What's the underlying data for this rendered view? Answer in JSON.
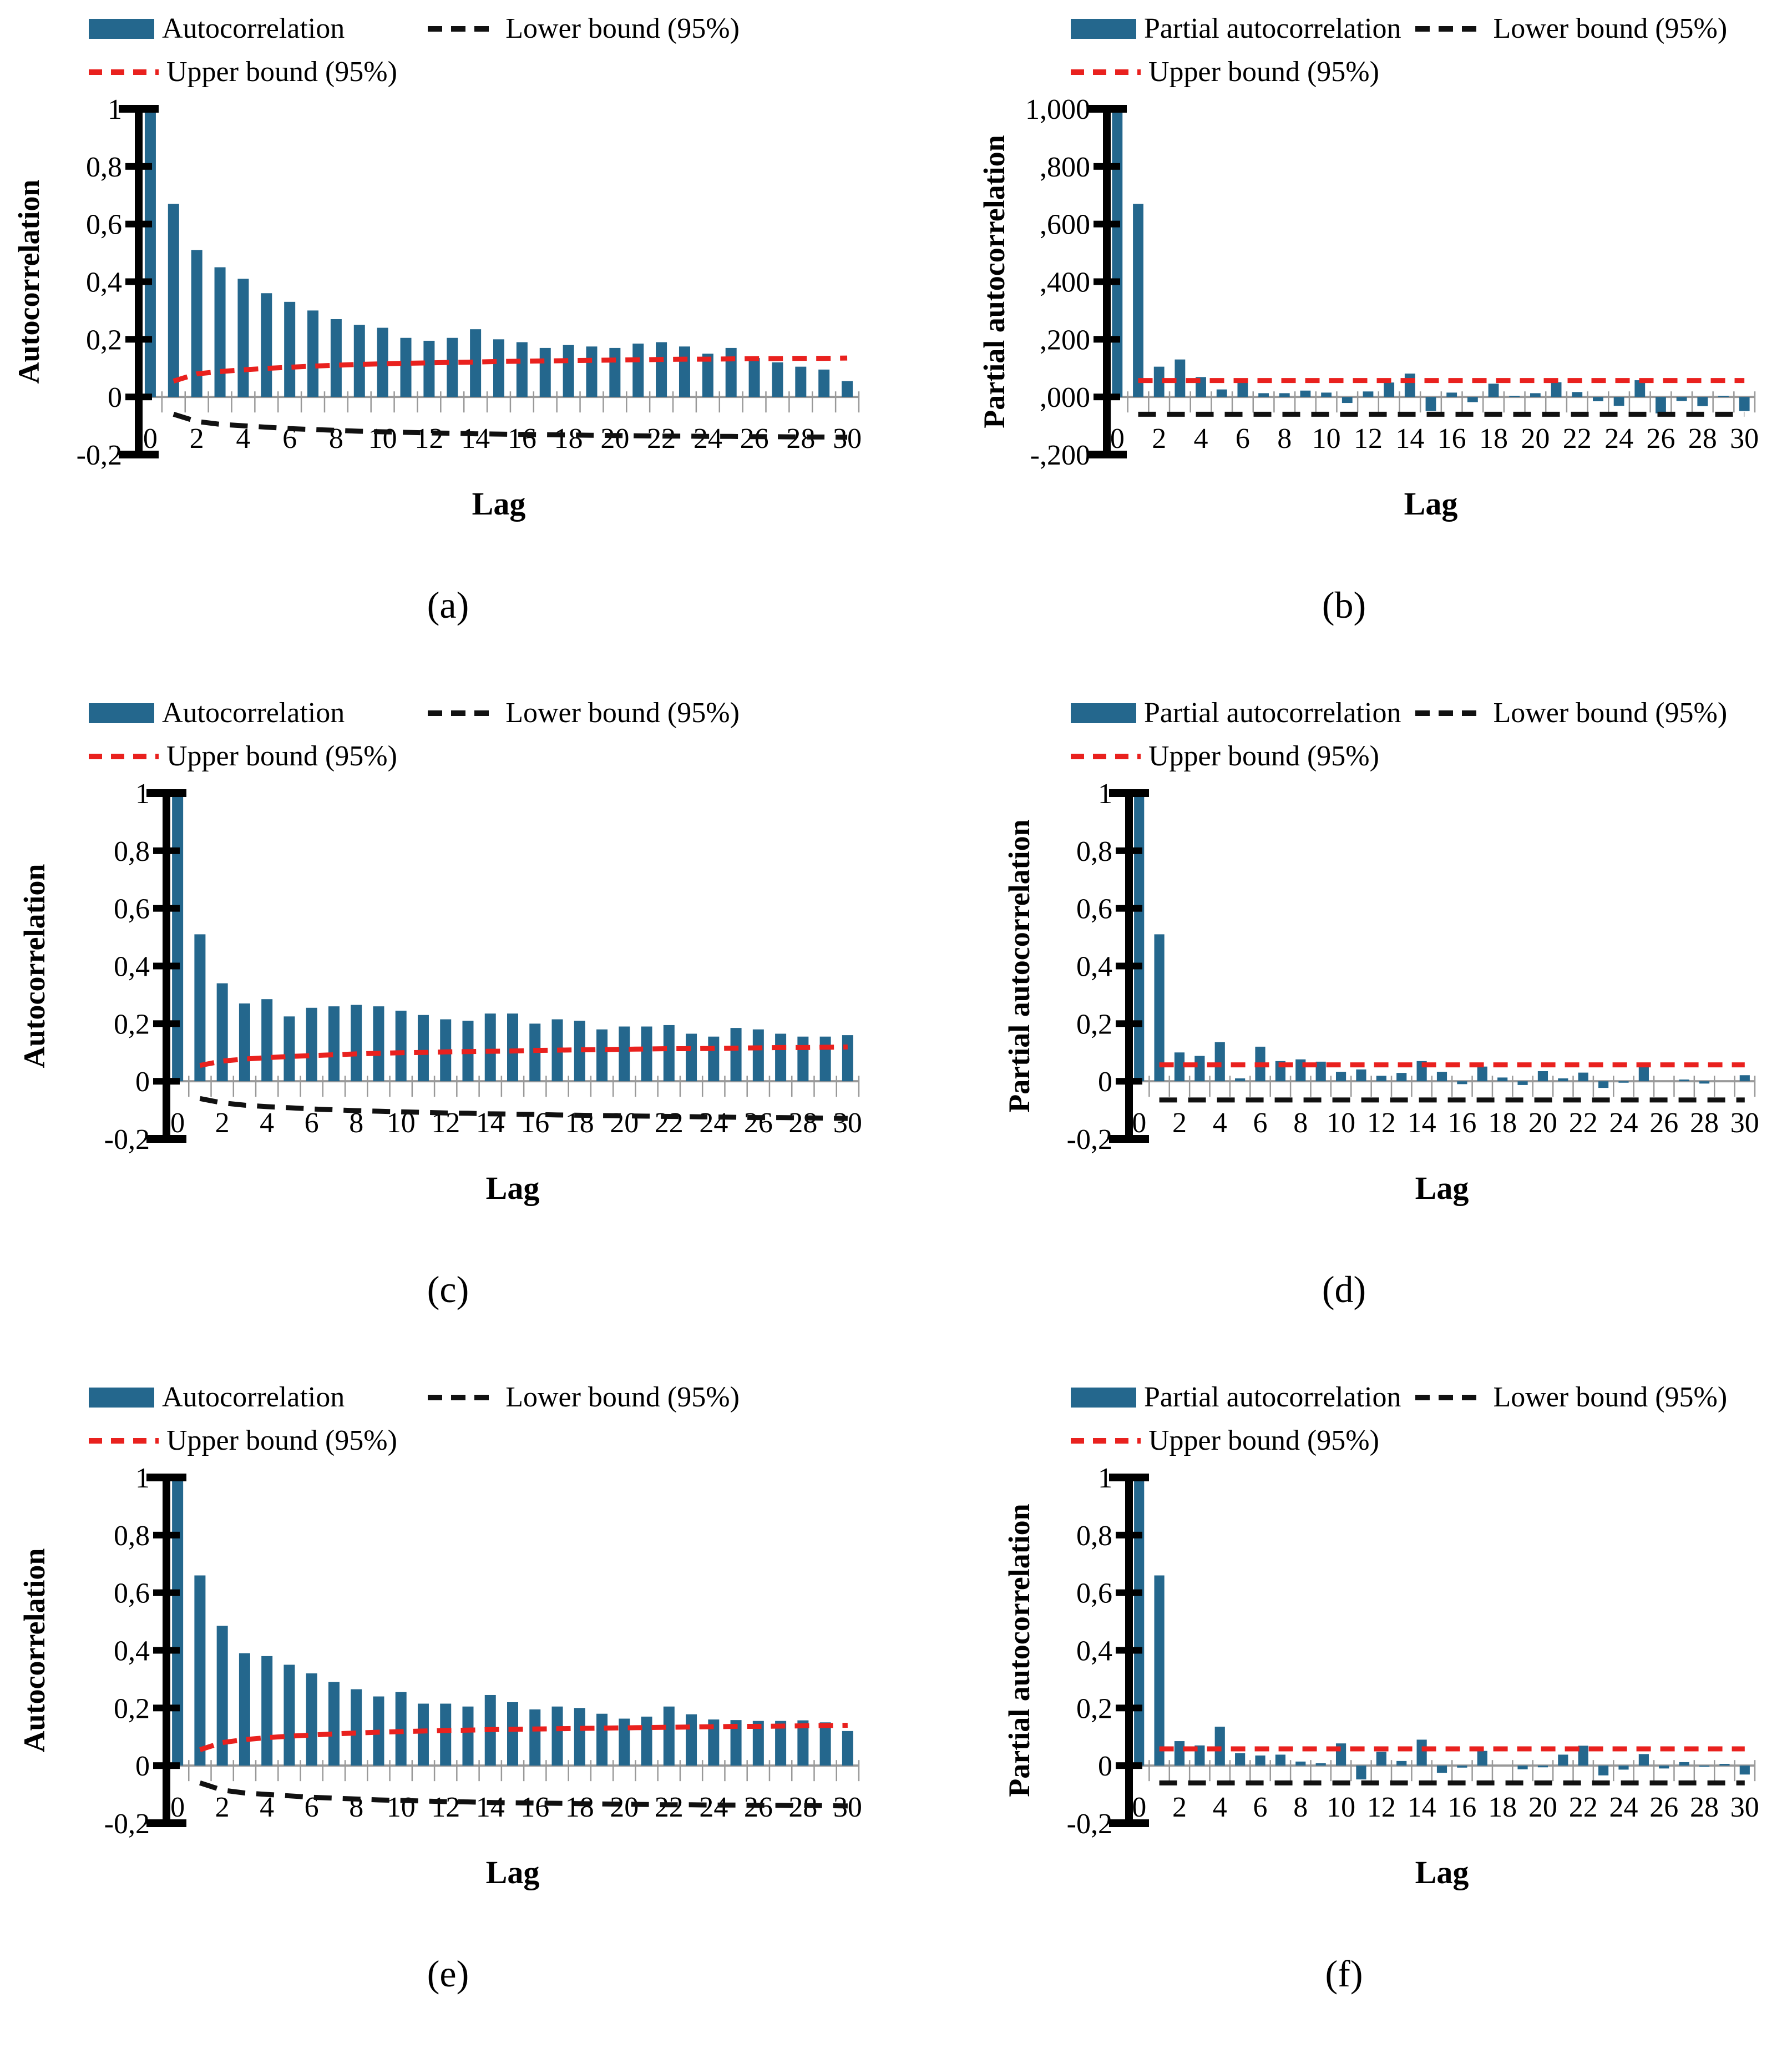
{
  "page": {
    "background": "#ffffff"
  },
  "colors": {
    "bar": "#24678d",
    "upper_bound": "#e9211e",
    "lower_bound": "#111111",
    "axis_gray": "#999999",
    "axis_black": "#000000"
  },
  "chart_data": [
    {
      "id": "a",
      "type": "bar",
      "caption": "(a)",
      "legend": {
        "series": "Autocorrelation",
        "lower": "Lower bound (95%)",
        "upper": "Upper bound (95%)"
      },
      "ylabel": "Autocorrelation",
      "xlabel": "Lag",
      "ylim": [
        -0.2,
        1
      ],
      "ytick_labels": [
        "1",
        "0,8",
        "0,6",
        "0,4",
        "0,2",
        "0",
        "-0,2"
      ],
      "ytick_values": [
        1,
        0.8,
        0.6,
        0.4,
        0.2,
        0,
        -0.2
      ],
      "xtick_labels": [
        "0",
        "2",
        "4",
        "6",
        "8",
        "10",
        "12",
        "14",
        "16",
        "18",
        "20",
        "22",
        "24",
        "26",
        "28",
        "30"
      ],
      "xtick_values": [
        0,
        2,
        4,
        6,
        8,
        10,
        12,
        14,
        16,
        18,
        20,
        22,
        24,
        26,
        28,
        30
      ],
      "values": [
        1,
        0.67,
        0.51,
        0.45,
        0.41,
        0.36,
        0.33,
        0.3,
        0.27,
        0.25,
        0.24,
        0.205,
        0.195,
        0.205,
        0.235,
        0.2,
        0.19,
        0.17,
        0.18,
        0.175,
        0.17,
        0.185,
        0.19,
        0.175,
        0.15,
        0.17,
        0.135,
        0.12,
        0.105,
        0.095,
        0.055
      ],
      "upper_bound": [
        null,
        0.055,
        0.08,
        0.088,
        0.094,
        0.099,
        0.103,
        0.107,
        0.11,
        0.113,
        0.115,
        0.117,
        0.118,
        0.12,
        0.121,
        0.123,
        0.124,
        0.125,
        0.126,
        0.127,
        0.128,
        0.129,
        0.13,
        0.131,
        0.131,
        0.132,
        0.133,
        0.133,
        0.134,
        0.134,
        0.135
      ],
      "lower_bound": [
        null,
        -0.06,
        -0.085,
        -0.095,
        -0.1,
        -0.105,
        -0.11,
        -0.113,
        -0.116,
        -0.119,
        -0.121,
        -0.123,
        -0.125,
        -0.126,
        -0.128,
        -0.129,
        -0.13,
        -0.131,
        -0.132,
        -0.133,
        -0.134,
        -0.135,
        -0.136,
        -0.136,
        -0.137,
        -0.137,
        -0.138,
        -0.138,
        -0.139,
        -0.139,
        -0.14
      ]
    },
    {
      "id": "b",
      "type": "bar",
      "caption": "(b)",
      "legend": {
        "series": "Partial autocorrelation",
        "lower": "Lower bound (95%)",
        "upper": "Upper bound (95%)"
      },
      "ylabel": "Partial autocorrelation",
      "xlabel": "Lag",
      "ylim": [
        -0.2,
        1
      ],
      "ytick_labels": [
        "1,000",
        ",800",
        ",600",
        ",400",
        ",200",
        ",000",
        "-,200"
      ],
      "ytick_values": [
        1,
        0.8,
        0.6,
        0.4,
        0.2,
        0,
        -0.2
      ],
      "xtick_labels": [
        "0",
        "2",
        "4",
        "6",
        "8",
        "10",
        "12",
        "14",
        "16",
        "18",
        "20",
        "22",
        "24",
        "26",
        "28",
        "30"
      ],
      "xtick_values": [
        0,
        2,
        4,
        6,
        8,
        10,
        12,
        14,
        16,
        18,
        20,
        22,
        24,
        26,
        28,
        30
      ],
      "values": [
        1,
        0.67,
        0.105,
        0.13,
        0.069,
        0.026,
        0.054,
        0.013,
        0.013,
        0.022,
        0.015,
        -0.021,
        0.019,
        0.05,
        0.081,
        -0.049,
        0.015,
        -0.018,
        0.046,
        0.004,
        0.013,
        0.051,
        0.017,
        -0.015,
        -0.031,
        0.058,
        -0.057,
        -0.014,
        -0.032,
        0.004,
        -0.049
      ],
      "upper_bound": [
        null,
        0.057,
        0.057,
        0.057,
        0.057,
        0.057,
        0.057,
        0.057,
        0.057,
        0.057,
        0.057,
        0.057,
        0.057,
        0.057,
        0.057,
        0.057,
        0.057,
        0.057,
        0.057,
        0.057,
        0.057,
        0.057,
        0.057,
        0.057,
        0.057,
        0.057,
        0.057,
        0.057,
        0.057,
        0.057,
        0.057
      ],
      "lower_bound": [
        null,
        -0.06,
        -0.06,
        -0.06,
        -0.06,
        -0.06,
        -0.06,
        -0.06,
        -0.06,
        -0.06,
        -0.06,
        -0.06,
        -0.06,
        -0.06,
        -0.06,
        -0.06,
        -0.06,
        -0.06,
        -0.06,
        -0.06,
        -0.06,
        -0.06,
        -0.06,
        -0.06,
        -0.06,
        -0.06,
        -0.06,
        -0.06,
        -0.06,
        -0.06,
        -0.06
      ]
    },
    {
      "id": "c",
      "type": "bar",
      "caption": "(c)",
      "legend": {
        "series": "Autocorrelation",
        "lower": "Lower bound (95%)",
        "upper": "Upper bound (95%)"
      },
      "ylabel": "Autocorrelation",
      "xlabel": "Lag",
      "ylim": [
        -0.2,
        1
      ],
      "ytick_labels": [
        "1",
        "0,8",
        "0,6",
        "0,4",
        "0,2",
        "0",
        "-0,2"
      ],
      "ytick_values": [
        1,
        0.8,
        0.6,
        0.4,
        0.2,
        0,
        -0.2
      ],
      "xtick_labels": [
        "0",
        "2",
        "4",
        "6",
        "8",
        "10",
        "12",
        "14",
        "16",
        "18",
        "20",
        "22",
        "24",
        "26",
        "28",
        "30"
      ],
      "xtick_values": [
        0,
        2,
        4,
        6,
        8,
        10,
        12,
        14,
        16,
        18,
        20,
        22,
        24,
        26,
        28,
        30
      ],
      "values": [
        1,
        0.51,
        0.34,
        0.27,
        0.285,
        0.225,
        0.255,
        0.26,
        0.265,
        0.26,
        0.245,
        0.23,
        0.215,
        0.21,
        0.235,
        0.235,
        0.2,
        0.215,
        0.21,
        0.18,
        0.19,
        0.19,
        0.195,
        0.165,
        0.155,
        0.185,
        0.18,
        0.165,
        0.155,
        0.155,
        0.16
      ],
      "upper_bound": [
        null,
        0.055,
        0.07,
        0.077,
        0.082,
        0.086,
        0.089,
        0.092,
        0.095,
        0.097,
        0.099,
        0.1,
        0.102,
        0.103,
        0.104,
        0.105,
        0.107,
        0.108,
        0.109,
        0.11,
        0.111,
        0.112,
        0.113,
        0.113,
        0.114,
        0.115,
        0.116,
        0.117,
        0.117,
        0.118,
        0.119
      ],
      "lower_bound": [
        null,
        -0.06,
        -0.075,
        -0.083,
        -0.088,
        -0.092,
        -0.096,
        -0.099,
        -0.102,
        -0.104,
        -0.106,
        -0.108,
        -0.11,
        -0.111,
        -0.113,
        -0.114,
        -0.115,
        -0.117,
        -0.118,
        -0.119,
        -0.12,
        -0.121,
        -0.122,
        -0.123,
        -0.124,
        -0.125,
        -0.126,
        -0.126,
        -0.127,
        -0.128,
        -0.129
      ]
    },
    {
      "id": "d",
      "type": "bar",
      "caption": "(d)",
      "legend": {
        "series": "Partial autocorrelation",
        "lower": "Lower bound (95%)",
        "upper": "Upper bound (95%)"
      },
      "ylabel": "Partial autocorrelation",
      "xlabel": "Lag",
      "ylim": [
        -0.2,
        1
      ],
      "ytick_labels": [
        "1",
        "0,8",
        "0,6",
        "0,4",
        "0,2",
        "0",
        "-0,2"
      ],
      "ytick_values": [
        1,
        0.8,
        0.6,
        0.4,
        0.2,
        0,
        -0.2
      ],
      "xtick_labels": [
        "0",
        "2",
        "4",
        "6",
        "8",
        "10",
        "12",
        "14",
        "16",
        "18",
        "20",
        "22",
        "24",
        "26",
        "28",
        "30"
      ],
      "xtick_values": [
        0,
        2,
        4,
        6,
        8,
        10,
        12,
        14,
        16,
        18,
        20,
        22,
        24,
        26,
        28,
        30
      ],
      "values": [
        1,
        0.51,
        0.1,
        0.088,
        0.136,
        0.01,
        0.12,
        0.07,
        0.076,
        0.068,
        0.033,
        0.041,
        0.019,
        0.029,
        0.07,
        0.033,
        -0.01,
        0.051,
        0.013,
        -0.013,
        0.035,
        0.01,
        0.03,
        -0.023,
        -0.005,
        0.056,
        0,
        0.006,
        -0.008,
        0,
        0.021
      ],
      "upper_bound": [
        null,
        0.057,
        0.057,
        0.057,
        0.057,
        0.057,
        0.057,
        0.057,
        0.057,
        0.057,
        0.057,
        0.057,
        0.057,
        0.057,
        0.057,
        0.057,
        0.057,
        0.057,
        0.057,
        0.057,
        0.057,
        0.057,
        0.057,
        0.057,
        0.057,
        0.057,
        0.057,
        0.057,
        0.057,
        0.057,
        0.057
      ],
      "lower_bound": [
        null,
        -0.065,
        -0.065,
        -0.065,
        -0.065,
        -0.065,
        -0.065,
        -0.065,
        -0.065,
        -0.065,
        -0.065,
        -0.065,
        -0.065,
        -0.065,
        -0.065,
        -0.065,
        -0.065,
        -0.065,
        -0.065,
        -0.065,
        -0.065,
        -0.065,
        -0.065,
        -0.065,
        -0.065,
        -0.065,
        -0.065,
        -0.065,
        -0.065,
        -0.065,
        -0.065
      ]
    },
    {
      "id": "e",
      "type": "bar",
      "caption": "(e)",
      "legend": {
        "series": "Autocorrelation",
        "lower": "Lower bound (95%)",
        "upper": "Upper bound (95%)"
      },
      "ylabel": "Autocorrelation",
      "xlabel": "Lag",
      "ylim": [
        -0.2,
        1
      ],
      "ytick_labels": [
        "1",
        "0,8",
        "0,6",
        "0,4",
        "0,2",
        "0",
        "-0,2"
      ],
      "ytick_values": [
        1,
        0.8,
        0.6,
        0.4,
        0.2,
        0,
        -0.2
      ],
      "xtick_labels": [
        "0",
        "2",
        "4",
        "6",
        "8",
        "10",
        "12",
        "14",
        "16",
        "18",
        "20",
        "22",
        "24",
        "26",
        "28",
        "30"
      ],
      "xtick_values": [
        0,
        2,
        4,
        6,
        8,
        10,
        12,
        14,
        16,
        18,
        20,
        22,
        24,
        26,
        28,
        30
      ],
      "values": [
        1,
        0.66,
        0.485,
        0.39,
        0.38,
        0.35,
        0.32,
        0.29,
        0.265,
        0.24,
        0.255,
        0.215,
        0.215,
        0.205,
        0.245,
        0.22,
        0.195,
        0.205,
        0.2,
        0.18,
        0.163,
        0.17,
        0.205,
        0.178,
        0.16,
        0.158,
        0.155,
        0.155,
        0.157,
        0.15,
        0.12
      ],
      "upper_bound": [
        null,
        0.055,
        0.08,
        0.09,
        0.097,
        0.102,
        0.106,
        0.11,
        0.113,
        0.116,
        0.118,
        0.12,
        0.122,
        0.123,
        0.125,
        0.126,
        0.127,
        0.128,
        0.129,
        0.13,
        0.131,
        0.132,
        0.133,
        0.134,
        0.135,
        0.136,
        0.136,
        0.137,
        0.138,
        0.139,
        0.14
      ],
      "lower_bound": [
        null,
        -0.06,
        -0.085,
        -0.095,
        -0.1,
        -0.105,
        -0.11,
        -0.113,
        -0.116,
        -0.119,
        -0.121,
        -0.123,
        -0.125,
        -0.126,
        -0.128,
        -0.129,
        -0.13,
        -0.131,
        -0.132,
        -0.133,
        -0.134,
        -0.135,
        -0.136,
        -0.136,
        -0.137,
        -0.137,
        -0.138,
        -0.138,
        -0.139,
        -0.139,
        -0.14
      ]
    },
    {
      "id": "f",
      "type": "bar",
      "caption": "(f)",
      "legend": {
        "series": "Partial autocorrelation",
        "lower": "Lower bound (95%)",
        "upper": "Upper bound (95%)"
      },
      "ylabel": "Partial autocorrelation",
      "xlabel": "Lag",
      "ylim": [
        -0.2,
        1
      ],
      "ytick_labels": [
        "1",
        "0,8",
        "0,6",
        "0,4",
        "0,2",
        "0",
        "-0,2"
      ],
      "ytick_values": [
        1,
        0.8,
        0.6,
        0.4,
        0.2,
        0,
        -0.2
      ],
      "xtick_labels": [
        "0",
        "2",
        "4",
        "6",
        "8",
        "10",
        "12",
        "14",
        "16",
        "18",
        "20",
        "22",
        "24",
        "26",
        "28",
        "30"
      ],
      "xtick_values": [
        0,
        2,
        4,
        6,
        8,
        10,
        12,
        14,
        16,
        18,
        20,
        22,
        24,
        26,
        28,
        30
      ],
      "values": [
        1,
        0.66,
        0.085,
        0.07,
        0.135,
        0.043,
        0.035,
        0.038,
        0.014,
        0.008,
        0.077,
        -0.048,
        0.048,
        0.016,
        0.09,
        -0.025,
        -0.007,
        0.051,
        0,
        -0.013,
        -0.006,
        0.038,
        0.069,
        -0.034,
        -0.014,
        0.04,
        -0.01,
        0.012,
        -0.004,
        0.006,
        -0.031
      ],
      "upper_bound": [
        null,
        0.058,
        0.058,
        0.058,
        0.058,
        0.058,
        0.058,
        0.058,
        0.058,
        0.058,
        0.058,
        0.058,
        0.058,
        0.058,
        0.058,
        0.058,
        0.058,
        0.058,
        0.058,
        0.058,
        0.058,
        0.058,
        0.058,
        0.058,
        0.058,
        0.058,
        0.058,
        0.058,
        0.058,
        0.058,
        0.058
      ],
      "lower_bound": [
        null,
        -0.06,
        -0.06,
        -0.06,
        -0.06,
        -0.06,
        -0.06,
        -0.06,
        -0.06,
        -0.06,
        -0.06,
        -0.06,
        -0.06,
        -0.06,
        -0.06,
        -0.06,
        -0.06,
        -0.06,
        -0.06,
        -0.06,
        -0.06,
        -0.06,
        -0.06,
        -0.06,
        -0.06,
        -0.06,
        -0.06,
        -0.06,
        -0.06,
        -0.06,
        -0.06
      ]
    }
  ]
}
